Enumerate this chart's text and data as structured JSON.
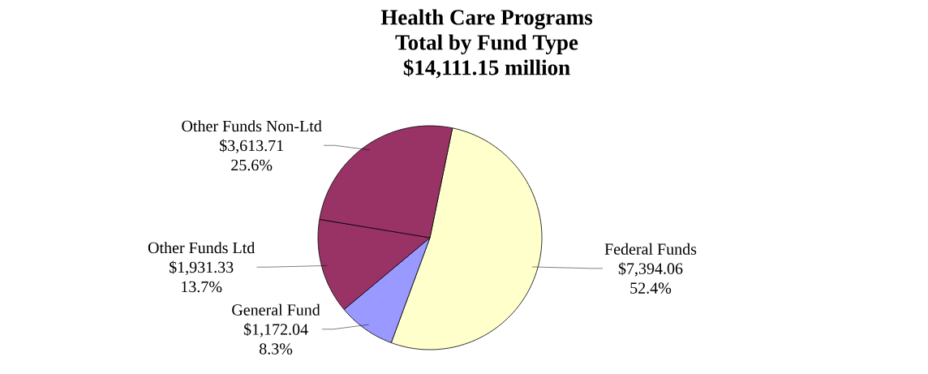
{
  "chart_data": {
    "type": "pie",
    "title": "Health Care Programs",
    "subtitle": "Total by Fund Type",
    "annotations": [
      "$14,111.15 million"
    ],
    "categories": [
      "Federal Funds",
      "General Fund",
      "Other Funds Ltd",
      "Other Funds Non-Ltd"
    ],
    "values": [
      52.4,
      8.3,
      13.7,
      25.6
    ],
    "colors": [
      "#ffffcc",
      "#9999ff",
      "#993366",
      "#993366"
    ],
    "value_labels": [
      [
        "$7,394.06",
        "52.4%"
      ],
      [
        "$1,172.04",
        "8.3%"
      ],
      [
        "$1,931.33",
        "13.7%"
      ],
      [
        "$3,613.71",
        "25.6%"
      ]
    ]
  }
}
